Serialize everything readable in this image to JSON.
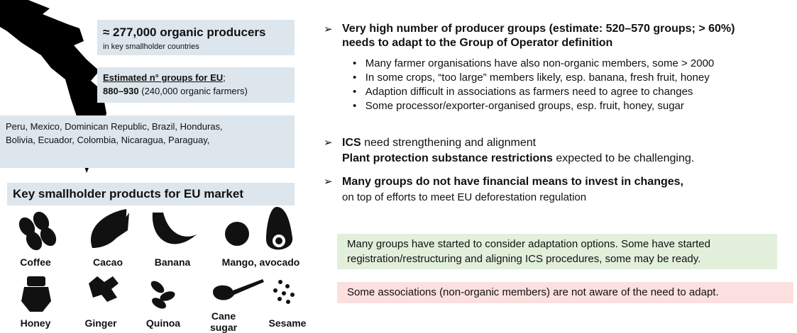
{
  "left": {
    "producers": {
      "headline": "≈ 277,000 organic producers",
      "sub": "in key smallholder countries"
    },
    "groups": {
      "label": "Estimated n° groups for EU",
      "punct": ";",
      "range": "880–930",
      "detail": "(240,000 organic farmers)"
    },
    "countries": "Peru, Mexico, Dominican Republic, Brazil, Honduras, Bolivia, Ecuador, Colombia, Nicaragua, Paraguay,",
    "products_title": "Key smallholder products for EU market",
    "products": [
      "Coffee",
      "Cacao",
      "Banana",
      "Mango, avocado",
      "Honey",
      "Ginger",
      "Quinoa",
      "Cane sugar",
      "Sesame"
    ]
  },
  "right": {
    "points": [
      {
        "heading": "Very high number of producer groups (estimate: 520–570 groups; > 60%) needs to adapt to the Group of Operator definition",
        "bullets": [
          "Many farmer organisations have also non-organic members, some > 2000",
          "In some crops, “too large” members likely, esp. banana, fresh fruit, honey",
          "Adaption difficult in associations as farmers need to agree to changes",
          "Some processor/exporter-organised groups, esp. fruit, honey, sugar"
        ]
      },
      {
        "bold1": "ICS",
        "text1": " need strengthening and alignment",
        "bold2": "Plant protection substance restrictions",
        "text2": " expected to be challenging."
      },
      {
        "bold1": "Many groups do not have financial means to invest in changes,",
        "text1": "on top of efforts to meet EU deforestation regulation"
      }
    ],
    "green_note": "Many groups have started to consider adaptation options. Some have started registration/restructuring and aligning ICS procedures, some may be ready.",
    "red_note": "Some associations (non-organic members) are not aware of the need to adapt."
  }
}
